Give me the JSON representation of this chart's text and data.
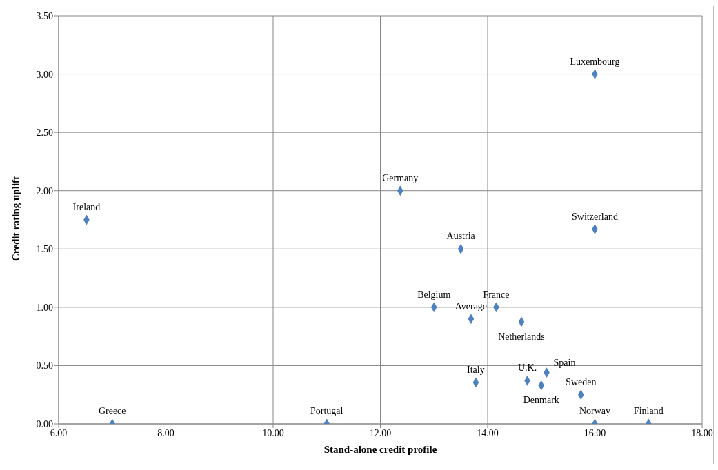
{
  "chart_data": {
    "type": "scatter",
    "xlabel": "Stand-alone credit profile",
    "ylabel": "Credit rating uplift",
    "x": [
      6.52,
      7.0,
      11.0,
      12.37,
      13.5,
      13.0,
      13.69,
      14.16,
      14.63,
      13.78,
      14.74,
      15.0,
      15.1,
      15.74,
      16.0,
      17.0,
      16.0,
      16.0
    ],
    "values": [
      1.75,
      0,
      0,
      2.0,
      1.5,
      1.0,
      0.9,
      1.0,
      0.875,
      0.355,
      0.37,
      0.33,
      0.44,
      0.25,
      0,
      0,
      3.0,
      1.67
    ],
    "color": "#4f81bd",
    "marker": "diamond",
    "grid": true,
    "xlim": [
      6,
      18
    ],
    "xticks": [
      {
        "value": 6,
        "label": "6.00"
      },
      {
        "value": 8,
        "label": "8.00"
      },
      {
        "value": 10,
        "label": "10.00"
      },
      {
        "value": 12,
        "label": "12.00"
      },
      {
        "value": 14,
        "label": "14.00"
      },
      {
        "value": 16,
        "label": "16.00"
      },
      {
        "value": 18,
        "label": "18.00"
      }
    ],
    "ylim": [
      0,
      3.5
    ],
    "yticks": [
      {
        "value": 0,
        "label": "0.00"
      },
      {
        "value": 0.5,
        "label": "0.50"
      },
      {
        "value": 1,
        "label": "1.00"
      },
      {
        "value": 1.5,
        "label": "1.50"
      },
      {
        "value": 2,
        "label": "2.00"
      },
      {
        "value": 2.5,
        "label": "2.50"
      },
      {
        "value": 3,
        "label": "3.00"
      },
      {
        "value": 3.5,
        "label": "3.50"
      }
    ],
    "annotations": [
      {
        "text": "Ireland",
        "x": 6.52,
        "y": 1.75
      },
      {
        "text": "Greece",
        "x": 7.0,
        "y": 0
      },
      {
        "text": "Portugal",
        "x": 11.0,
        "y": 0
      },
      {
        "text": "Germany",
        "x": 12.37,
        "y": 2.0
      },
      {
        "text": "Austria",
        "x": 13.5,
        "y": 1.5
      },
      {
        "text": "Belgium",
        "x": 13.0,
        "y": 1.0
      },
      {
        "text": "Average",
        "x": 13.69,
        "y": 0.9
      },
      {
        "text": "France",
        "x": 14.16,
        "y": 1.0
      },
      {
        "text": "Netherlands",
        "x": 14.63,
        "y": 0.875
      },
      {
        "text": "Italy",
        "x": 13.78,
        "y": 0.355
      },
      {
        "text": "U.K.",
        "x": 14.74,
        "y": 0.37
      },
      {
        "text": "Denmark",
        "x": 15.0,
        "y": 0.33
      },
      {
        "text": "Spain",
        "x": 15.1,
        "y": 0.44
      },
      {
        "text": "Sweden",
        "x": 15.74,
        "y": 0.25
      },
      {
        "text": "Norway",
        "x": 16.0,
        "y": 0
      },
      {
        "text": "Finland",
        "x": 17.0,
        "y": 0
      },
      {
        "text": "Luxembourg",
        "x": 16.0,
        "y": 3.0
      },
      {
        "text": "Switzerland",
        "x": 16.0,
        "y": 1.67
      }
    ]
  }
}
